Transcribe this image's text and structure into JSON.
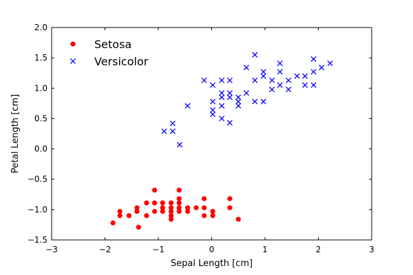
{
  "chart_data": {
    "type": "scatter",
    "title": "",
    "xlabel": "Sepal Length [cm]",
    "ylabel": "Petal Length [cm]",
    "xlim": [
      -3,
      3
    ],
    "ylim": [
      -1.5,
      2.0
    ],
    "xticks": [
      -3,
      -2,
      -1,
      0,
      1,
      2,
      3
    ],
    "xtick_labels": [
      "−3",
      "−2",
      "−1",
      "0",
      "1",
      "2",
      "3"
    ],
    "yticks": [
      -1.5,
      -1.0,
      -0.5,
      0.0,
      0.5,
      1.0,
      1.5,
      2.0
    ],
    "ytick_labels": [
      "−1.5",
      "−1.0",
      "−0.5",
      "0.0",
      "0.5",
      "1.0",
      "1.5",
      "2.0"
    ],
    "grid": false,
    "legend_position": "top-left",
    "series": [
      {
        "name": "Setosa",
        "marker": "circle",
        "color": "#ff0000",
        "points": [
          [
            -1.85,
            -1.22
          ],
          [
            -1.72,
            -1.1
          ],
          [
            -1.72,
            -1.03
          ],
          [
            -1.55,
            -1.1
          ],
          [
            -1.4,
            -0.97
          ],
          [
            -1.4,
            -1.03
          ],
          [
            -1.37,
            -1.29
          ],
          [
            -1.22,
            -0.89
          ],
          [
            -1.22,
            -1.1
          ],
          [
            -1.07,
            -0.68
          ],
          [
            -1.07,
            -0.89
          ],
          [
            -1.07,
            -1.03
          ],
          [
            -0.92,
            -0.97
          ],
          [
            -0.92,
            -1.03
          ],
          [
            -0.92,
            -0.89
          ],
          [
            -0.76,
            -0.89
          ],
          [
            -0.76,
            -0.97
          ],
          [
            -0.76,
            -1.03
          ],
          [
            -0.76,
            -1.1
          ],
          [
            -0.76,
            -1.16
          ],
          [
            -0.61,
            -0.68
          ],
          [
            -0.61,
            -0.82
          ],
          [
            -0.61,
            -0.89
          ],
          [
            -0.61,
            -0.97
          ],
          [
            -0.61,
            -1.03
          ],
          [
            -0.45,
            -0.97
          ],
          [
            -0.45,
            -1.03
          ],
          [
            -0.29,
            -0.97
          ],
          [
            -0.14,
            -0.82
          ],
          [
            -0.14,
            -0.97
          ],
          [
            -0.14,
            -1.1
          ],
          [
            0.02,
            -1.03
          ],
          [
            0.02,
            -1.1
          ],
          [
            0.34,
            -0.82
          ],
          [
            0.34,
            -0.97
          ],
          [
            0.5,
            -1.16
          ]
        ]
      },
      {
        "name": "Versicolor",
        "marker": "x",
        "color": "#0000ff",
        "points": [
          [
            -0.89,
            0.29
          ],
          [
            -0.73,
            0.29
          ],
          [
            -0.73,
            0.42
          ],
          [
            -0.6,
            0.07
          ],
          [
            -0.45,
            0.71
          ],
          [
            -0.14,
            1.13
          ],
          [
            0.02,
            1.05
          ],
          [
            0.02,
            0.78
          ],
          [
            0.02,
            0.64
          ],
          [
            0.02,
            0.57
          ],
          [
            0.19,
            1.13
          ],
          [
            0.19,
            0.92
          ],
          [
            0.19,
            0.85
          ],
          [
            0.19,
            0.71
          ],
          [
            0.19,
            0.5
          ],
          [
            0.34,
            1.13
          ],
          [
            0.34,
            0.92
          ],
          [
            0.34,
            0.85
          ],
          [
            0.34,
            0.43
          ],
          [
            0.5,
            0.85
          ],
          [
            0.5,
            0.78
          ],
          [
            0.5,
            0.71
          ],
          [
            0.65,
            1.34
          ],
          [
            0.65,
            0.92
          ],
          [
            0.81,
            1.55
          ],
          [
            0.81,
            1.13
          ],
          [
            0.81,
            0.78
          ],
          [
            0.97,
            1.27
          ],
          [
            0.97,
            1.2
          ],
          [
            0.97,
            0.78
          ],
          [
            1.13,
            1.13
          ],
          [
            1.13,
            0.98
          ],
          [
            1.28,
            1.41
          ],
          [
            1.28,
            1.27
          ],
          [
            1.28,
            1.05
          ],
          [
            1.44,
            1.13
          ],
          [
            1.44,
            0.98
          ],
          [
            1.6,
            1.2
          ],
          [
            1.75,
            1.2
          ],
          [
            1.75,
            1.05
          ],
          [
            1.91,
            1.48
          ],
          [
            1.91,
            1.27
          ],
          [
            1.91,
            1.05
          ],
          [
            2.06,
            1.34
          ],
          [
            2.22,
            1.41
          ]
        ]
      }
    ]
  }
}
